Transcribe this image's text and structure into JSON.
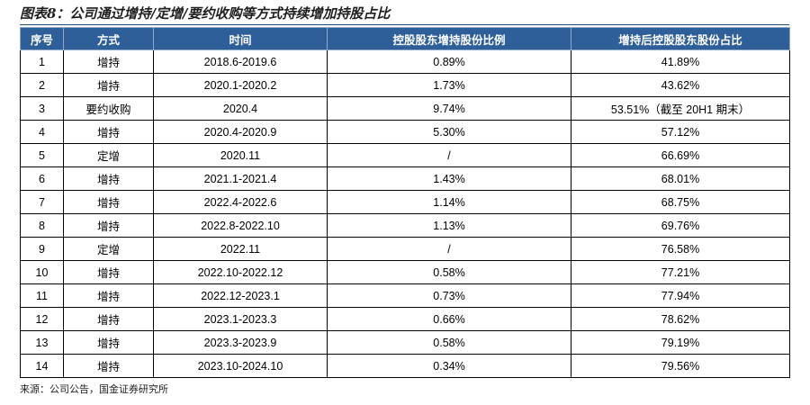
{
  "figure": {
    "title": "图表8：公司通过增持/定增/要约收购等方式持续增加持股占比",
    "source": "来源：公司公告，国金证券研究所"
  },
  "table": {
    "headers": [
      "序号",
      "方式",
      "时间",
      "控股股东增持股份比例",
      "增持后控股股东股份占比"
    ],
    "rows": [
      [
        "1",
        "增持",
        "2018.6-2019.6",
        "0.89%",
        "41.89%"
      ],
      [
        "2",
        "增持",
        "2020.1-2020.2",
        "1.73%",
        "43.62%"
      ],
      [
        "3",
        "要约收购",
        "2020.4",
        "9.74%",
        "53.51%（截至 20H1 期末）"
      ],
      [
        "4",
        "增持",
        "2020.4-2020.9",
        "5.30%",
        "57.12%"
      ],
      [
        "5",
        "定增",
        "2020.11",
        "/",
        "66.69%"
      ],
      [
        "6",
        "增持",
        "2021.1-2021.4",
        "1.43%",
        "68.01%"
      ],
      [
        "7",
        "增持",
        "2022.4-2022.6",
        "1.14%",
        "68.75%"
      ],
      [
        "8",
        "增持",
        "2022.8-2022.10",
        "1.13%",
        "69.76%"
      ],
      [
        "9",
        "定增",
        "2022.11",
        "/",
        "76.58%"
      ],
      [
        "10",
        "增持",
        "2022.10-2022.12",
        "0.58%",
        "77.21%"
      ],
      [
        "11",
        "增持",
        "2022.12-2023.1",
        "0.73%",
        "77.94%"
      ],
      [
        "12",
        "增持",
        "2023.1-2023.3",
        "0.66%",
        "78.62%"
      ],
      [
        "13",
        "增持",
        "2023.3-2023.9",
        "0.58%",
        "79.19%"
      ],
      [
        "14",
        "增持",
        "2023.10-2024.10",
        "0.34%",
        "79.56%"
      ]
    ]
  }
}
